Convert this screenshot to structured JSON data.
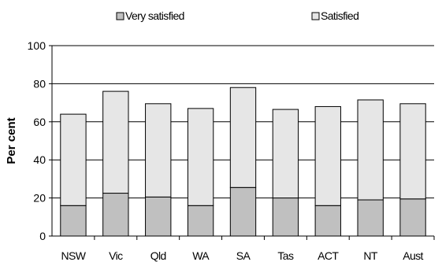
{
  "chart_data": {
    "type": "bar",
    "stacked": true,
    "categories": [
      "NSW",
      "Vic",
      "Qld",
      "WA",
      "SA",
      "Tas",
      "ACT",
      "NT",
      "Aust"
    ],
    "series": [
      {
        "name": "Very satisfied",
        "color": "#c0c0c0",
        "values": [
          16,
          22.5,
          20.5,
          16,
          25.5,
          20,
          16,
          19,
          19.5
        ]
      },
      {
        "name": "Satisfied",
        "color": "#e6e6e6",
        "values": [
          48,
          53.5,
          49,
          51,
          52.5,
          46.5,
          52,
          52.5,
          50
        ]
      }
    ],
    "xlabel": "",
    "ylabel": "Per cent",
    "ylim": [
      0,
      100
    ],
    "yticks": [
      0,
      20,
      40,
      60,
      80,
      100
    ],
    "grid": true,
    "legend_position": "top"
  }
}
